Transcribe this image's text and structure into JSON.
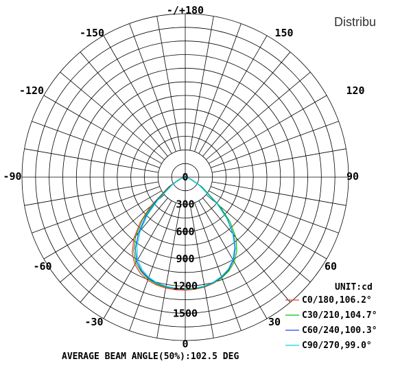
{
  "chart_data": {
    "type": "polar",
    "title_partial": "Distribu",
    "unit_label": "UNIT:cd",
    "angle_tick_labels": [
      "-/+180",
      "150",
      "120",
      "90",
      "60",
      "30",
      "0",
      "-30",
      "-60",
      "-90",
      "-120",
      "-150"
    ],
    "angle_ticks_deg": [
      180,
      150,
      120,
      90,
      60,
      30,
      0,
      -30,
      -60,
      -90,
      -120,
      -150
    ],
    "radial_tick_labels": [
      "0",
      "300",
      "600",
      "900",
      "1200",
      "1500"
    ],
    "radial_ticks": [
      0,
      300,
      600,
      900,
      1200,
      1500
    ],
    "rmax": 1800,
    "footer": "AVERAGE BEAM ANGLE(50%):102.5 DEG",
    "series": [
      {
        "name": "C0/180,106.2°",
        "color": "#ff3030",
        "angles": [
          -90,
          -80,
          -70,
          -60,
          -50,
          -45,
          -40,
          -35,
          -30,
          -25,
          -20,
          -15,
          -10,
          -5,
          0,
          5,
          10,
          15,
          20,
          25,
          30,
          35,
          40,
          45,
          50,
          60,
          70,
          80,
          90
        ],
        "values": [
          0,
          20,
          70,
          210,
          500,
          700,
          880,
          1020,
          1110,
          1170,
          1210,
          1230,
          1240,
          1245,
          1245,
          1240,
          1230,
          1210,
          1180,
          1130,
          1060,
          960,
          830,
          660,
          480,
          200,
          60,
          15,
          0
        ]
      },
      {
        "name": "C30/210,104.7°",
        "color": "#00c000",
        "angles": [
          -90,
          -80,
          -70,
          -60,
          -50,
          -45,
          -40,
          -35,
          -30,
          -25,
          -20,
          -15,
          -10,
          -5,
          0,
          5,
          10,
          15,
          20,
          25,
          30,
          35,
          40,
          45,
          50,
          60,
          70,
          80,
          90
        ],
        "values": [
          0,
          15,
          60,
          190,
          470,
          670,
          850,
          990,
          1090,
          1150,
          1195,
          1220,
          1230,
          1235,
          1235,
          1235,
          1225,
          1205,
          1180,
          1140,
          1080,
          990,
          870,
          700,
          500,
          210,
          65,
          15,
          0
        ]
      },
      {
        "name": "C60/240,100.3°",
        "color": "#2040ff",
        "angles": [
          -90,
          -80,
          -70,
          -60,
          -50,
          -45,
          -40,
          -35,
          -30,
          -25,
          -20,
          -15,
          -10,
          -5,
          0,
          5,
          10,
          15,
          20,
          25,
          30,
          35,
          40,
          45,
          50,
          60,
          70,
          80,
          90
        ],
        "values": [
          0,
          15,
          55,
          170,
          430,
          620,
          800,
          960,
          1070,
          1140,
          1185,
          1210,
          1225,
          1230,
          1230,
          1230,
          1220,
          1200,
          1170,
          1125,
          1060,
          960,
          830,
          660,
          470,
          190,
          55,
          15,
          0
        ]
      },
      {
        "name": "C90/270,99.0°",
        "color": "#00d8e0",
        "angles": [
          -90,
          -80,
          -70,
          -60,
          -50,
          -45,
          -40,
          -35,
          -30,
          -25,
          -20,
          -15,
          -10,
          -5,
          0,
          5,
          10,
          15,
          20,
          25,
          30,
          35,
          40,
          45,
          50,
          60,
          70,
          80,
          90
        ],
        "values": [
          0,
          15,
          50,
          160,
          400,
          590,
          770,
          930,
          1050,
          1125,
          1175,
          1205,
          1220,
          1228,
          1230,
          1228,
          1218,
          1198,
          1165,
          1120,
          1050,
          950,
          815,
          650,
          460,
          180,
          50,
          15,
          0
        ]
      }
    ]
  }
}
